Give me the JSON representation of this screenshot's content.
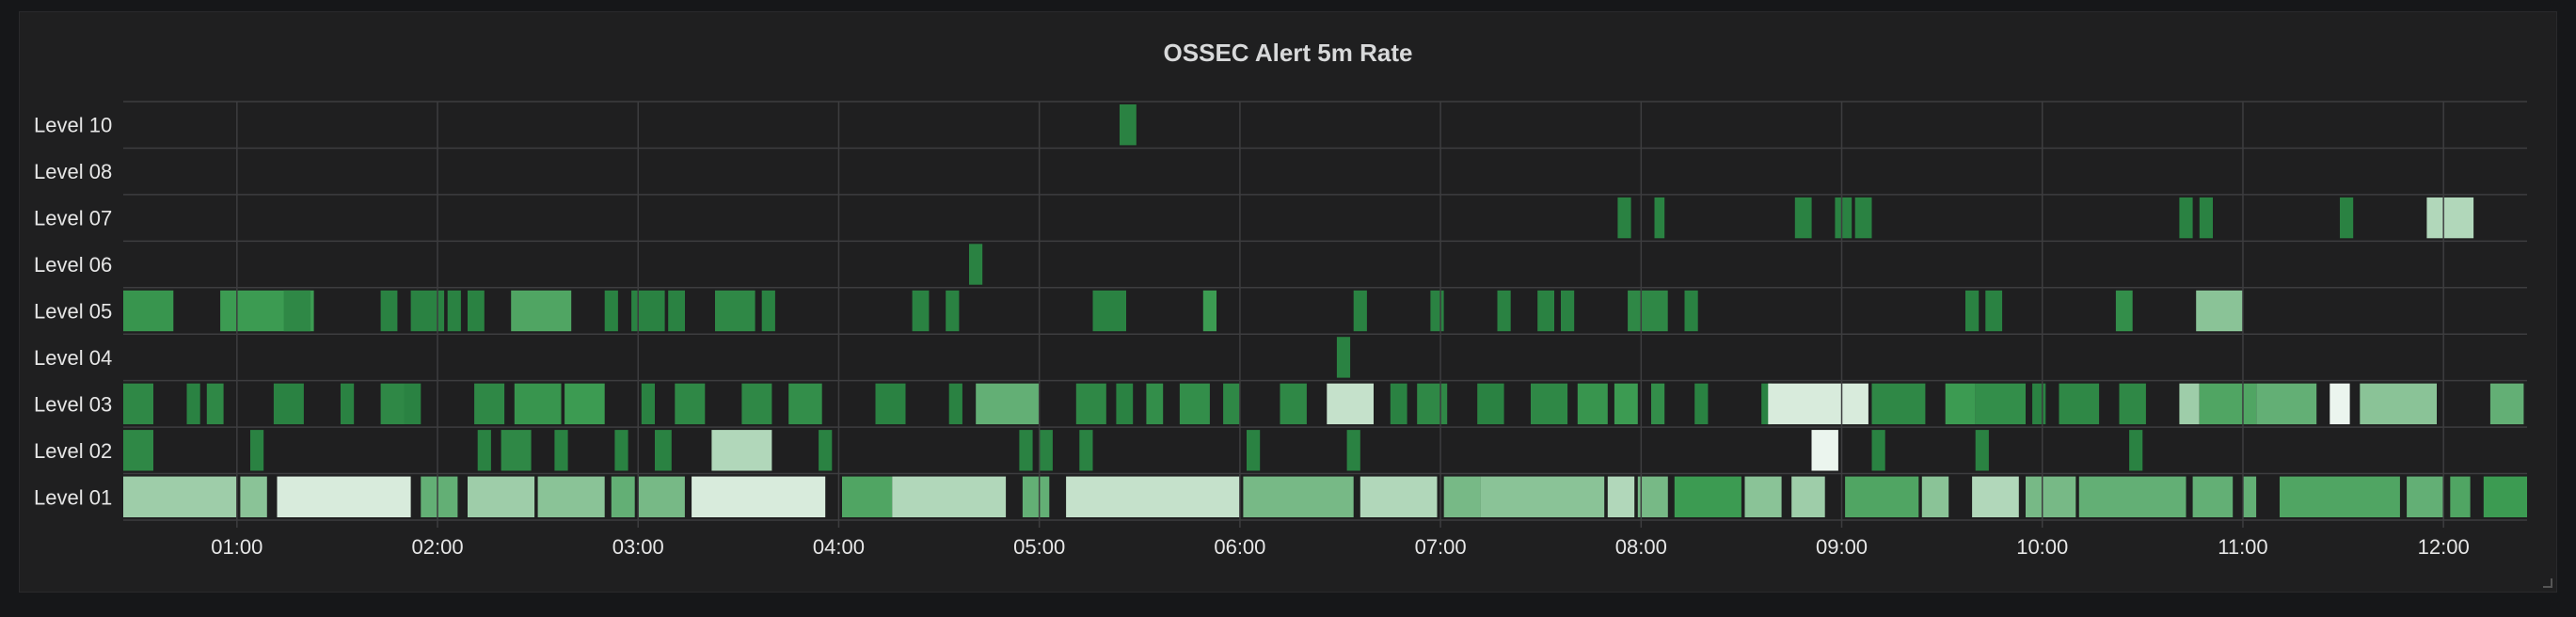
{
  "panel": {
    "title": "OSSEC Alert 5m Rate"
  },
  "colors": {
    "background": "#1f1f20",
    "grid": "#3d3d3f",
    "text": "#e6e6e6",
    "low": "#0f5c2a",
    "mid": "#3c9b52",
    "high": "#ffffff"
  },
  "chart_data": {
    "type": "heatmap",
    "title": "OSSEC Alert 5m Rate",
    "x_range": [
      "00:26",
      "12:25"
    ],
    "x_ticks": [
      "01:00",
      "02:00",
      "03:00",
      "04:00",
      "05:00",
      "06:00",
      "07:00",
      "08:00",
      "09:00",
      "10:00",
      "11:00",
      "12:00"
    ],
    "y_categories": [
      "Level 10",
      "Level 08",
      "Level 07",
      "Level 06",
      "Level 05",
      "Level 04",
      "Level 03",
      "Level 02",
      "Level 01"
    ],
    "intensity_range": [
      0,
      1
    ],
    "grid": true,
    "series": [
      {
        "level": "Level 10",
        "cells": [
          {
            "t": "05:24",
            "d": 5,
            "v": 0.3
          }
        ]
      },
      {
        "level": "Level 08",
        "cells": []
      },
      {
        "level": "Level 07",
        "cells": [
          {
            "t": "07:53",
            "d": 4,
            "v": 0.3
          },
          {
            "t": "08:04",
            "d": 3,
            "v": 0.3
          },
          {
            "t": "08:46",
            "d": 5,
            "v": 0.3
          },
          {
            "t": "08:58",
            "d": 5,
            "v": 0.3
          },
          {
            "t": "09:04",
            "d": 5,
            "v": 0.3
          },
          {
            "t": "10:41",
            "d": 4,
            "v": 0.3
          },
          {
            "t": "10:47",
            "d": 4,
            "v": 0.3
          },
          {
            "t": "11:29",
            "d": 4,
            "v": 0.3
          },
          {
            "t": "11:55",
            "d": 14,
            "v": 0.8
          }
        ]
      },
      {
        "level": "Level 06",
        "cells": [
          {
            "t": "04:39",
            "d": 4,
            "v": 0.3
          }
        ]
      },
      {
        "level": "Level 05",
        "cells": [
          {
            "t": "00:26",
            "d": 15,
            "v": 0.45
          },
          {
            "t": "00:55",
            "d": 28,
            "v": 0.5
          },
          {
            "t": "01:14",
            "d": 8,
            "v": 0.35
          },
          {
            "t": "01:43",
            "d": 5,
            "v": 0.3
          },
          {
            "t": "01:52",
            "d": 10,
            "v": 0.3
          },
          {
            "t": "02:03",
            "d": 4,
            "v": 0.3
          },
          {
            "t": "02:09",
            "d": 5,
            "v": 0.3
          },
          {
            "t": "02:22",
            "d": 18,
            "v": 0.55
          },
          {
            "t": "02:50",
            "d": 4,
            "v": 0.3
          },
          {
            "t": "02:58",
            "d": 10,
            "v": 0.3
          },
          {
            "t": "03:09",
            "d": 5,
            "v": 0.3
          },
          {
            "t": "03:23",
            "d": 12,
            "v": 0.35
          },
          {
            "t": "03:37",
            "d": 4,
            "v": 0.3
          },
          {
            "t": "04:22",
            "d": 5,
            "v": 0.3
          },
          {
            "t": "04:32",
            "d": 4,
            "v": 0.3
          },
          {
            "t": "05:16",
            "d": 10,
            "v": 0.3
          },
          {
            "t": "05:49",
            "d": 4,
            "v": 0.5
          },
          {
            "t": "06:34",
            "d": 4,
            "v": 0.3
          },
          {
            "t": "06:57",
            "d": 4,
            "v": 0.3
          },
          {
            "t": "07:17",
            "d": 4,
            "v": 0.3
          },
          {
            "t": "07:29",
            "d": 5,
            "v": 0.3
          },
          {
            "t": "07:36",
            "d": 4,
            "v": 0.3
          },
          {
            "t": "07:56",
            "d": 12,
            "v": 0.35
          },
          {
            "t": "08:13",
            "d": 4,
            "v": 0.3
          },
          {
            "t": "09:37",
            "d": 4,
            "v": 0.3
          },
          {
            "t": "09:43",
            "d": 5,
            "v": 0.3
          },
          {
            "t": "10:22",
            "d": 5,
            "v": 0.4
          },
          {
            "t": "10:46",
            "d": 14,
            "v": 0.7
          }
        ]
      },
      {
        "level": "Level 04",
        "cells": [
          {
            "t": "06:29",
            "d": 4,
            "v": 0.3
          }
        ]
      },
      {
        "level": "Level 03",
        "cells": [
          {
            "t": "00:26",
            "d": 9,
            "v": 0.35
          },
          {
            "t": "00:45",
            "d": 4,
            "v": 0.3
          },
          {
            "t": "00:51",
            "d": 5,
            "v": 0.35
          },
          {
            "t": "01:11",
            "d": 9,
            "v": 0.3
          },
          {
            "t": "01:31",
            "d": 4,
            "v": 0.3
          },
          {
            "t": "01:43",
            "d": 7,
            "v": 0.35
          },
          {
            "t": "01:50",
            "d": 5,
            "v": 0.3
          },
          {
            "t": "02:11",
            "d": 9,
            "v": 0.35
          },
          {
            "t": "02:23",
            "d": 14,
            "v": 0.45
          },
          {
            "t": "02:38",
            "d": 12,
            "v": 0.5
          },
          {
            "t": "03:01",
            "d": 4,
            "v": 0.3
          },
          {
            "t": "03:11",
            "d": 9,
            "v": 0.35
          },
          {
            "t": "03:31",
            "d": 9,
            "v": 0.35
          },
          {
            "t": "03:45",
            "d": 10,
            "v": 0.4
          },
          {
            "t": "04:11",
            "d": 9,
            "v": 0.3
          },
          {
            "t": "04:33",
            "d": 4,
            "v": 0.3
          },
          {
            "t": "04:41",
            "d": 19,
            "v": 0.6
          },
          {
            "t": "05:11",
            "d": 9,
            "v": 0.35
          },
          {
            "t": "05:23",
            "d": 5,
            "v": 0.3
          },
          {
            "t": "05:32",
            "d": 5,
            "v": 0.4
          },
          {
            "t": "05:42",
            "d": 9,
            "v": 0.4
          },
          {
            "t": "05:55",
            "d": 5,
            "v": 0.35
          },
          {
            "t": "06:12",
            "d": 8,
            "v": 0.35
          },
          {
            "t": "06:26",
            "d": 14,
            "v": 0.85
          },
          {
            "t": "06:45",
            "d": 5,
            "v": 0.3
          },
          {
            "t": "06:53",
            "d": 9,
            "v": 0.35
          },
          {
            "t": "07:11",
            "d": 8,
            "v": 0.3
          },
          {
            "t": "07:27",
            "d": 11,
            "v": 0.35
          },
          {
            "t": "07:41",
            "d": 9,
            "v": 0.45
          },
          {
            "t": "07:52",
            "d": 7,
            "v": 0.5
          },
          {
            "t": "08:03",
            "d": 4,
            "v": 0.4
          },
          {
            "t": "08:16",
            "d": 4,
            "v": 0.3
          },
          {
            "t": "08:36",
            "d": 3,
            "v": 0.3
          },
          {
            "t": "08:38",
            "d": 30,
            "v": 0.9
          },
          {
            "t": "09:09",
            "d": 16,
            "v": 0.35
          },
          {
            "t": "09:31",
            "d": 9,
            "v": 0.5
          },
          {
            "t": "09:40",
            "d": 15,
            "v": 0.4
          },
          {
            "t": "09:57",
            "d": 4,
            "v": 0.3
          },
          {
            "t": "10:05",
            "d": 12,
            "v": 0.35
          },
          {
            "t": "10:23",
            "d": 8,
            "v": 0.35
          },
          {
            "t": "10:41",
            "d": 6,
            "v": 0.75
          },
          {
            "t": "10:47",
            "d": 17,
            "v": 0.55
          },
          {
            "t": "11:04",
            "d": 18,
            "v": 0.6
          },
          {
            "t": "11:26",
            "d": 6,
            "v": 0.95
          },
          {
            "t": "11:35",
            "d": 23,
            "v": 0.7
          },
          {
            "t": "12:14",
            "d": 10,
            "v": 0.6
          }
        ]
      },
      {
        "level": "Level 02",
        "cells": [
          {
            "t": "00:26",
            "d": 9,
            "v": 0.35
          },
          {
            "t": "01:04",
            "d": 4,
            "v": 0.3
          },
          {
            "t": "02:12",
            "d": 4,
            "v": 0.3
          },
          {
            "t": "02:19",
            "d": 9,
            "v": 0.35
          },
          {
            "t": "02:35",
            "d": 4,
            "v": 0.3
          },
          {
            "t": "02:53",
            "d": 4,
            "v": 0.3
          },
          {
            "t": "03:05",
            "d": 5,
            "v": 0.3
          },
          {
            "t": "03:22",
            "d": 18,
            "v": 0.8
          },
          {
            "t": "03:54",
            "d": 4,
            "v": 0.3
          },
          {
            "t": "04:54",
            "d": 4,
            "v": 0.3
          },
          {
            "t": "05:00",
            "d": 4,
            "v": 0.3
          },
          {
            "t": "05:12",
            "d": 4,
            "v": 0.3
          },
          {
            "t": "06:02",
            "d": 4,
            "v": 0.3
          },
          {
            "t": "06:32",
            "d": 4,
            "v": 0.3
          },
          {
            "t": "08:51",
            "d": 8,
            "v": 0.95
          },
          {
            "t": "09:09",
            "d": 4,
            "v": 0.3
          },
          {
            "t": "09:40",
            "d": 4,
            "v": 0.3
          },
          {
            "t": "10:26",
            "d": 4,
            "v": 0.3
          }
        ]
      },
      {
        "level": "Level 01",
        "cells": [
          {
            "t": "00:26",
            "d": 34,
            "v": 0.75
          },
          {
            "t": "01:01",
            "d": 8,
            "v": 0.7
          },
          {
            "t": "01:12",
            "d": 40,
            "v": 0.9
          },
          {
            "t": "01:55",
            "d": 11,
            "v": 0.6
          },
          {
            "t": "02:09",
            "d": 20,
            "v": 0.75
          },
          {
            "t": "02:30",
            "d": 20,
            "v": 0.7
          },
          {
            "t": "02:52",
            "d": 7,
            "v": 0.6
          },
          {
            "t": "03:00",
            "d": 14,
            "v": 0.65
          },
          {
            "t": "03:16",
            "d": 40,
            "v": 0.9
          },
          {
            "t": "04:01",
            "d": 15,
            "v": 0.55
          },
          {
            "t": "04:16",
            "d": 34,
            "v": 0.8
          },
          {
            "t": "04:55",
            "d": 8,
            "v": 0.6
          },
          {
            "t": "05:08",
            "d": 52,
            "v": 0.85
          },
          {
            "t": "06:01",
            "d": 33,
            "v": 0.65
          },
          {
            "t": "06:36",
            "d": 23,
            "v": 0.8
          },
          {
            "t": "07:01",
            "d": 11,
            "v": 0.65
          },
          {
            "t": "07:12",
            "d": 37,
            "v": 0.7
          },
          {
            "t": "07:50",
            "d": 8,
            "v": 0.8
          },
          {
            "t": "07:59",
            "d": 9,
            "v": 0.65
          },
          {
            "t": "08:10",
            "d": 20,
            "v": 0.5
          },
          {
            "t": "08:31",
            "d": 11,
            "v": 0.7
          },
          {
            "t": "08:45",
            "d": 10,
            "v": 0.75
          },
          {
            "t": "09:01",
            "d": 22,
            "v": 0.55
          },
          {
            "t": "09:24",
            "d": 8,
            "v": 0.7
          },
          {
            "t": "09:39",
            "d": 14,
            "v": 0.8
          },
          {
            "t": "09:55",
            "d": 15,
            "v": 0.65
          },
          {
            "t": "10:11",
            "d": 32,
            "v": 0.6
          },
          {
            "t": "10:45",
            "d": 12,
            "v": 0.6
          },
          {
            "t": "11:00",
            "d": 4,
            "v": 0.6
          },
          {
            "t": "11:11",
            "d": 36,
            "v": 0.55
          },
          {
            "t": "11:49",
            "d": 11,
            "v": 0.6
          },
          {
            "t": "12:02",
            "d": 6,
            "v": 0.55
          },
          {
            "t": "12:12",
            "d": 13,
            "v": 0.5
          }
        ]
      }
    ]
  }
}
